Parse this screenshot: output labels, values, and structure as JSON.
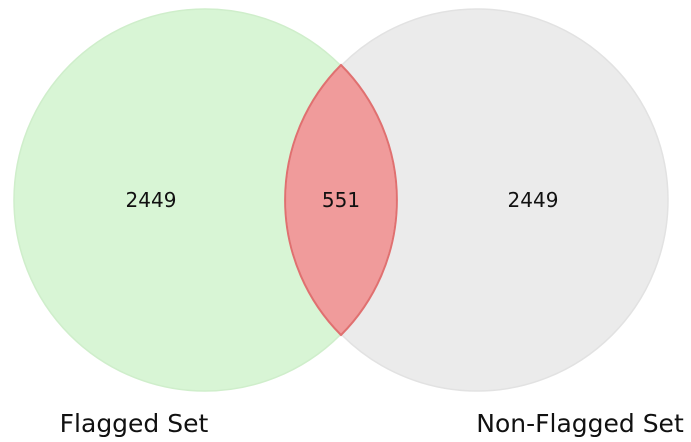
{
  "diagram": {
    "type": "venn",
    "sets": [
      {
        "name": "Flagged Set",
        "only_count": "2449",
        "color": "#d8f5d5",
        "edge_color": "#cfeecb"
      },
      {
        "name": "Non-Flagged Set",
        "only_count": "2449",
        "color": "#ebebeb",
        "edge_color": "#e2e2e2"
      }
    ],
    "intersection": {
      "count": "551",
      "color": "#f09b9b",
      "edge_color": "#e07070"
    }
  }
}
